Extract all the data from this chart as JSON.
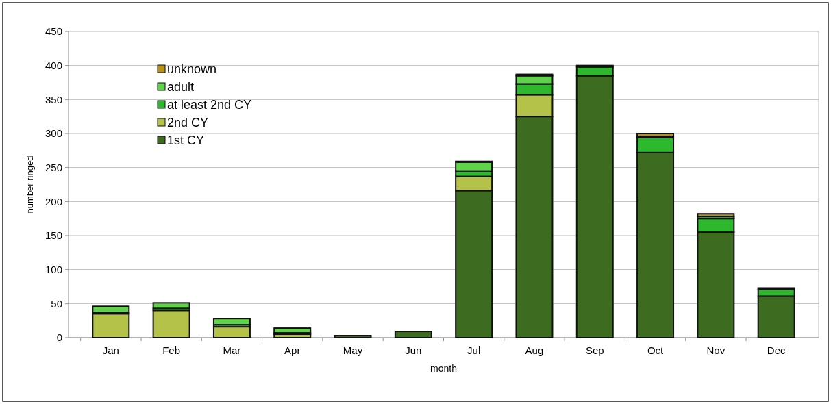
{
  "chart_data": {
    "type": "bar",
    "stacked": true,
    "xlabel": "month",
    "ylabel": "number ringed",
    "categories": [
      "Jan",
      "Feb",
      "Mar",
      "Apr",
      "May",
      "Jun",
      "Jul",
      "Aug",
      "Sep",
      "Oct",
      "Nov",
      "Dec"
    ],
    "series": [
      {
        "name": "1st CY",
        "color": "#3d6b1f",
        "values": [
          0,
          0,
          0,
          0,
          3,
          9,
          216,
          325,
          385,
          272,
          155,
          61
        ]
      },
      {
        "name": "2nd CY",
        "color": "#b5c24a",
        "values": [
          35,
          40,
          16,
          5,
          0,
          0,
          21,
          32,
          0,
          0,
          0,
          0
        ]
      },
      {
        "name": "at least 2nd CY",
        "color": "#2eb82e",
        "values": [
          2,
          3,
          3,
          2,
          0,
          0,
          8,
          16,
          13,
          22,
          20,
          10
        ]
      },
      {
        "name": "adult",
        "color": "#5fd34a",
        "values": [
          9,
          8,
          9,
          7,
          0,
          0,
          13,
          12,
          2,
          2,
          3,
          2
        ]
      },
      {
        "name": "unknown",
        "color": "#b8931a",
        "values": [
          0,
          0,
          0,
          0,
          0,
          0,
          1,
          2,
          0,
          4,
          4,
          0
        ]
      }
    ],
    "ylim": [
      0,
      450
    ],
    "yticks": [
      0,
      50,
      100,
      150,
      200,
      250,
      300,
      350,
      400,
      450
    ],
    "grid": "y",
    "legend": "top left"
  }
}
